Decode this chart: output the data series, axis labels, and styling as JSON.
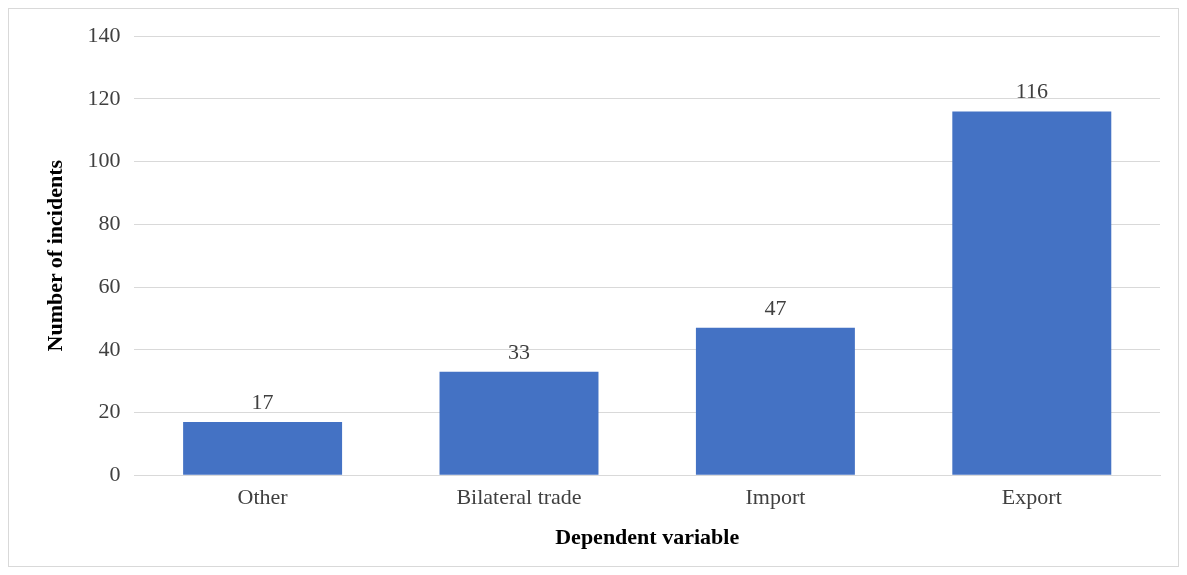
{
  "chart_data": {
    "type": "bar",
    "xlabel": "Dependent variable",
    "ylabel": "Number of incidents",
    "categories": [
      "Other",
      "Bilateral trade",
      "Import",
      "Export"
    ],
    "values": [
      17,
      33,
      47,
      116
    ],
    "color": "#4472c4",
    "ylim": [
      0,
      140
    ],
    "yticks": [
      0,
      20,
      40,
      60,
      80,
      100,
      120,
      140
    ],
    "grid": "y",
    "data_labels": true
  }
}
